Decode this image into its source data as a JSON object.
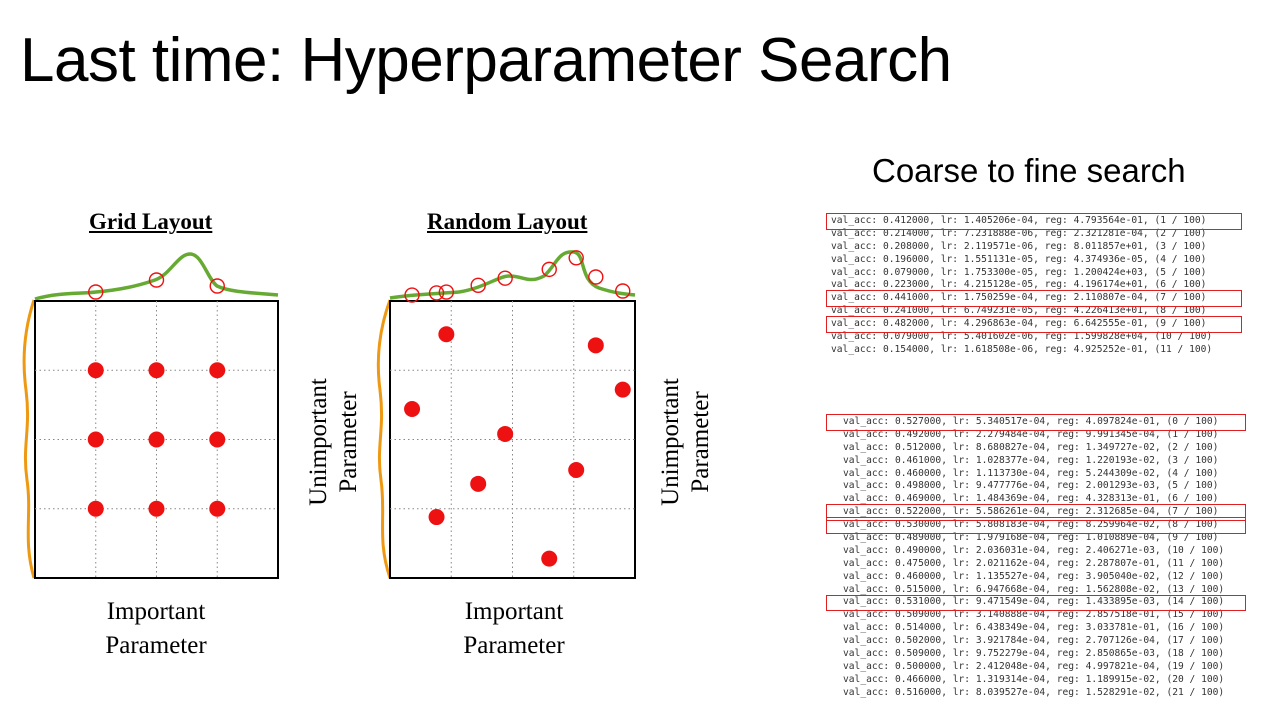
{
  "title": "Last time: Hyperparameter Search",
  "grid_panel": {
    "title": "Grid Layout",
    "x_label": [
      "Important",
      "Parameter"
    ],
    "y_label": [
      "Unimportant",
      "Parameter"
    ],
    "points": [
      [
        1,
        1
      ],
      [
        2,
        1
      ],
      [
        3,
        1
      ],
      [
        1,
        2
      ],
      [
        2,
        2
      ],
      [
        3,
        2
      ],
      [
        1,
        3
      ],
      [
        2,
        3
      ],
      [
        3,
        3
      ]
    ]
  },
  "random_panel": {
    "title": "Random Layout",
    "x_label": [
      "Important",
      "Parameter"
    ],
    "y_label": [
      "Unimportant",
      "Parameter"
    ],
    "points": [
      [
        0.23,
        0.12
      ],
      [
        0.84,
        0.16
      ],
      [
        0.95,
        0.32
      ],
      [
        0.09,
        0.39
      ],
      [
        0.47,
        0.48
      ],
      [
        0.76,
        0.61
      ],
      [
        0.36,
        0.66
      ],
      [
        0.19,
        0.78
      ],
      [
        0.65,
        0.93
      ]
    ]
  },
  "colors": {
    "grid_line": "#888888",
    "point": "#ee1111",
    "curve_top": "#66aa33",
    "curve_left": "#ee9911",
    "highlight": "#e02020"
  },
  "search": {
    "title": "Coarse to fine search",
    "coarse": [
      "val_acc: 0.412000, lr: 1.405206e-04, reg: 4.793564e-01, (1 / 100)",
      "val_acc: 0.214000, lr: 7.231888e-06, reg: 2.321281e-04, (2 / 100)",
      "val_acc: 0.208000, lr: 2.119571e-06, reg: 8.011857e+01, (3 / 100)",
      "val_acc: 0.196000, lr: 1.551131e-05, reg: 4.374936e-05, (4 / 100)",
      "val_acc: 0.079000, lr: 1.753300e-05, reg: 1.200424e+03, (5 / 100)",
      "val_acc: 0.223000, lr: 4.215128e-05, reg: 4.196174e+01, (6 / 100)",
      "val_acc: 0.441000, lr: 1.750259e-04, reg: 2.110807e-04, (7 / 100)",
      "val_acc: 0.241000, lr: 6.749231e-05, reg: 4.226413e+01, (8 / 100)",
      "val_acc: 0.482000, lr: 4.296863e-04, reg: 6.642555e-01, (9 / 100)",
      "val_acc: 0.079000, lr: 5.401602e-06, reg: 1.599828e+04, (10 / 100)",
      "val_acc: 0.154000, lr: 1.618508e-06, reg: 4.925252e-01, (11 / 100)"
    ],
    "fine": [
      "val_acc: 0.527000, lr: 5.340517e-04, reg: 4.097824e-01, (0 / 100)",
      "val_acc: 0.492000, lr: 2.279484e-04, reg: 9.991345e-04, (1 / 100)",
      "val_acc: 0.512000, lr: 8.680827e-04, reg: 1.349727e-02, (2 / 100)",
      "val_acc: 0.461000, lr: 1.028377e-04, reg: 1.220193e-02, (3 / 100)",
      "val_acc: 0.460000, lr: 1.113730e-04, reg: 5.244309e-02, (4 / 100)",
      "val_acc: 0.498000, lr: 9.477776e-04, reg: 2.001293e-03, (5 / 100)",
      "val_acc: 0.469000, lr: 1.484369e-04, reg: 4.328313e-01, (6 / 100)",
      "val_acc: 0.522000, lr: 5.586261e-04, reg: 2.312685e-04, (7 / 100)",
      "val_acc: 0.530000, lr: 5.808183e-04, reg: 8.259964e-02, (8 / 100)",
      "val_acc: 0.489000, lr: 1.979168e-04, reg: 1.010889e-04, (9 / 100)",
      "val_acc: 0.490000, lr: 2.036031e-04, reg: 2.406271e-03, (10 / 100)",
      "val_acc: 0.475000, lr: 2.021162e-04, reg: 2.287807e-01, (11 / 100)",
      "val_acc: 0.460000, lr: 1.135527e-04, reg: 3.905040e-02, (12 / 100)",
      "val_acc: 0.515000, lr: 6.947668e-04, reg: 1.562808e-02, (13 / 100)",
      "val_acc: 0.531000, lr: 9.471549e-04, reg: 1.433895e-03, (14 / 100)",
      "val_acc: 0.509000, lr: 3.140888e-04, reg: 2.857518e-01, (15 / 100)",
      "val_acc: 0.514000, lr: 6.438349e-04, reg: 3.033781e-01, (16 / 100)",
      "val_acc: 0.502000, lr: 3.921784e-04, reg: 2.707126e-04, (17 / 100)",
      "val_acc: 0.509000, lr: 9.752279e-04, reg: 2.850865e-03, (18 / 100)",
      "val_acc: 0.500000, lr: 2.412048e-04, reg: 4.997821e-04, (19 / 100)",
      "val_acc: 0.466000, lr: 1.319314e-04, reg: 1.189915e-02, (20 / 100)",
      "val_acc: 0.516000, lr: 8.039527e-04, reg: 1.528291e-02, (21 / 100)"
    ],
    "coarse_highlighted": [
      0,
      6,
      8
    ],
    "fine_highlighted": [
      0,
      7,
      8,
      14
    ]
  }
}
